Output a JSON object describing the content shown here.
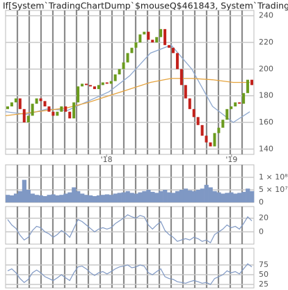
{
  "chart_data": [
    {
      "type": "candlestick",
      "title": "If[System`TradingChartDump`$mouseQ$461843, System`TradingChar",
      "open": [
        170,
        172,
        175,
        178,
        170,
        160,
        165,
        174,
        178,
        176,
        172,
        168,
        165,
        168,
        172,
        168,
        163,
        175,
        187,
        189,
        188,
        187,
        185,
        188,
        190,
        189,
        191,
        196,
        200,
        205,
        212,
        216,
        220,
        226,
        228,
        222,
        220,
        224,
        230,
        218,
        216,
        212,
        200,
        188,
        178,
        170,
        164,
        158,
        150,
        145,
        142,
        152,
        156,
        162,
        170,
        172,
        175,
        174,
        182,
        192
      ],
      "close": [
        172,
        175,
        178,
        170,
        160,
        165,
        174,
        178,
        176,
        172,
        168,
        165,
        168,
        172,
        168,
        163,
        175,
        187,
        189,
        188,
        187,
        185,
        188,
        190,
        189,
        191,
        196,
        200,
        205,
        212,
        216,
        220,
        226,
        228,
        222,
        220,
        224,
        230,
        218,
        216,
        212,
        200,
        188,
        178,
        170,
        164,
        158,
        150,
        145,
        142,
        152,
        156,
        162,
        170,
        172,
        175,
        174,
        182,
        192,
        188
      ],
      "up_color": "#6b9b1e",
      "down_color": "#c2211b",
      "lines": [
        {
          "color": "#8ea8cf",
          "x": [
            0,
            5,
            10,
            15,
            20,
            25,
            30,
            35,
            40,
            45,
            50,
            55,
            59
          ],
          "values": [
            168,
            166,
            170,
            169,
            176,
            183,
            195,
            212,
            218,
            200,
            172,
            160,
            168
          ]
        },
        {
          "color": "#e5a33e",
          "x": [
            0,
            5,
            10,
            15,
            20,
            25,
            30,
            35,
            40,
            45,
            50,
            55,
            59
          ],
          "values": [
            165,
            167,
            169,
            171,
            175,
            180,
            185,
            190,
            193,
            193,
            192,
            190,
            190
          ]
        }
      ],
      "xlim": [
        0,
        60
      ],
      "xticks": [
        {
          "value": 24.4,
          "label": "'18"
        },
        {
          "value": 54.6,
          "label": "'19"
        }
      ],
      "ylim": [
        136,
        244
      ],
      "yticks": [
        140,
        160,
        180,
        200,
        220,
        240
      ],
      "grid": true
    },
    {
      "type": "bar",
      "color": "#7f98c4",
      "xlim": [
        0,
        60
      ],
      "values": [
        30000000,
        28000000,
        35000000,
        45000000,
        90000000,
        50000000,
        35000000,
        30000000,
        28000000,
        25000000,
        30000000,
        32000000,
        28000000,
        30000000,
        35000000,
        40000000,
        60000000,
        45000000,
        35000000,
        30000000,
        28000000,
        25000000,
        28000000,
        30000000,
        32000000,
        30000000,
        35000000,
        38000000,
        40000000,
        45000000,
        38000000,
        35000000,
        40000000,
        45000000,
        50000000,
        42000000,
        38000000,
        45000000,
        50000000,
        40000000,
        38000000,
        45000000,
        50000000,
        55000000,
        48000000,
        45000000,
        50000000,
        55000000,
        70000000,
        60000000,
        45000000,
        40000000,
        35000000,
        38000000,
        40000000,
        35000000,
        38000000,
        42000000,
        55000000,
        45000000
      ],
      "ylim": [
        0,
        150000000
      ],
      "yticks": [
        {
          "value": 100000000,
          "label": "1 × 10⁸"
        },
        {
          "value": 50000000,
          "label": "5 × 10⁷"
        },
        0
      ],
      "grid": true
    },
    {
      "type": "line",
      "color": "#7f98c4",
      "xlim": [
        0,
        60
      ],
      "values": [
        18,
        10,
        5,
        -5,
        -12,
        -8,
        2,
        8,
        6,
        0,
        -3,
        -8,
        -4,
        2,
        -2,
        -8,
        5,
        18,
        15,
        10,
        5,
        0,
        4,
        6,
        4,
        6,
        12,
        16,
        20,
        25,
        22,
        20,
        24,
        22,
        10,
        4,
        10,
        15,
        2,
        -4,
        -8,
        -14,
        -12,
        -10,
        -12,
        -8,
        -10,
        -14,
        -12,
        -16,
        -4,
        0,
        4,
        10,
        6,
        8,
        4,
        12,
        22,
        16
      ],
      "ylim": [
        -18,
        37
      ],
      "yticks": [
        20,
        0
      ],
      "grid": true
    },
    {
      "type": "line",
      "color": "#7f98c4",
      "xlim": [
        0,
        60
      ],
      "values": [
        60,
        65,
        55,
        40,
        30,
        38,
        55,
        62,
        55,
        45,
        40,
        35,
        42,
        50,
        42,
        35,
        55,
        70,
        72,
        65,
        55,
        48,
        55,
        58,
        52,
        58,
        65,
        70,
        72,
        75,
        68,
        70,
        75,
        72,
        55,
        50,
        58,
        65,
        45,
        40,
        38,
        32,
        30,
        28,
        32,
        35,
        32,
        28,
        30,
        25,
        40,
        45,
        50,
        60,
        55,
        58,
        52,
        65,
        78,
        70
      ],
      "ylim": [
        16,
        118
      ],
      "yticks": [
        75,
        50,
        25
      ],
      "grid": true
    }
  ]
}
